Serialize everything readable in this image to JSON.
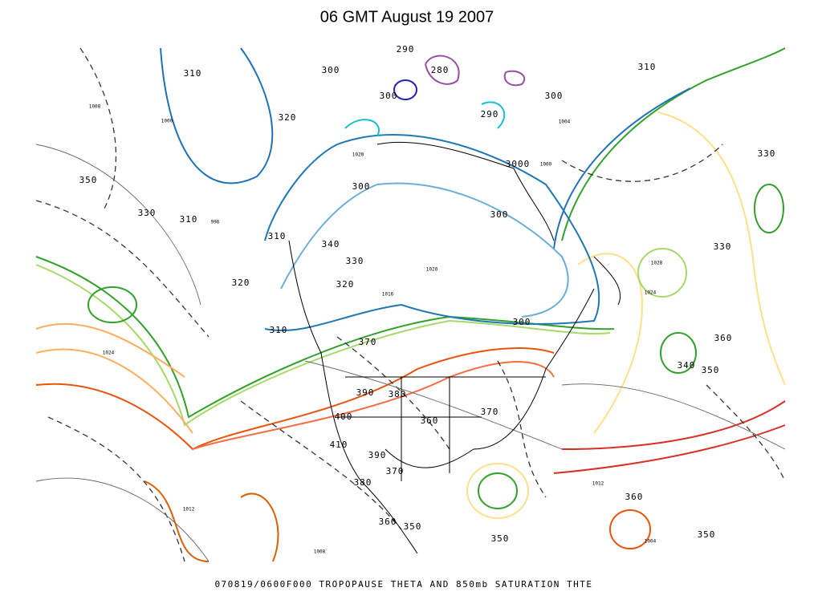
{
  "header": {
    "title": "06 GMT August 19 2007"
  },
  "footer": {
    "caption": "070819/0600F000 TROPOPAUSE THETA AND 850mb SATURATION THTE"
  },
  "map": {
    "contour_labels": [
      "290",
      "280",
      "310",
      "300",
      "300",
      "300",
      "310",
      "320",
      "290",
      "350",
      "3000",
      "330",
      "300",
      "330",
      "310",
      "300",
      "310",
      "340",
      "330",
      "330",
      "320",
      "320",
      "300",
      "310",
      "370",
      "360",
      "340",
      "350",
      "390",
      "380",
      "400",
      "360",
      "370",
      "410",
      "390",
      "370",
      "380",
      "360",
      "360",
      "350",
      "350",
      "350"
    ],
    "pressure_labels": [
      "1008",
      "1004",
      "1000",
      "996",
      "1020",
      "1016",
      "1024",
      "1028",
      "1012",
      "1008",
      "1004",
      "1012",
      "1000",
      "1020",
      "1024"
    ]
  }
}
